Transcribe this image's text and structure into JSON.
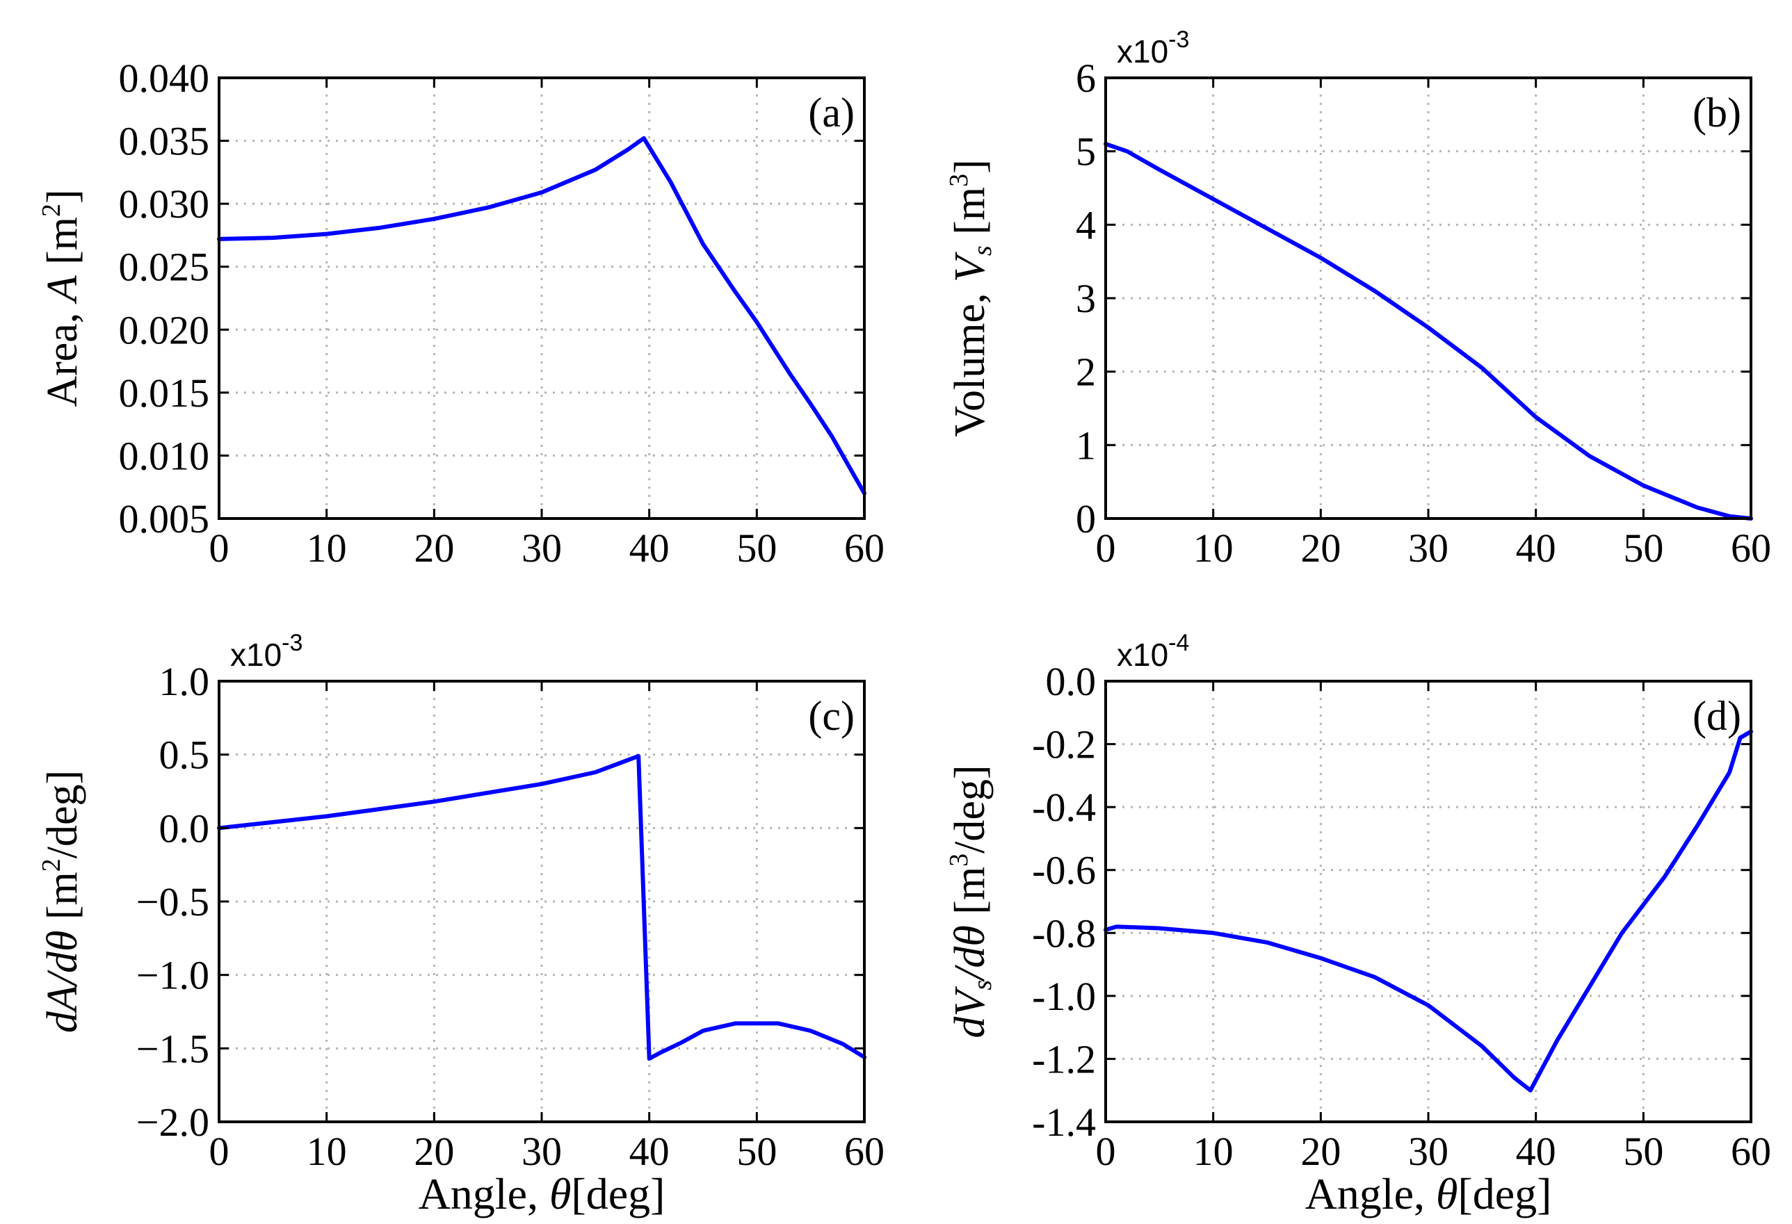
{
  "colors": {
    "line": "#0000ff",
    "grid": "#b5b5b5",
    "axis": "#000000"
  },
  "shared_xlabel": {
    "prefix": "Angle, ",
    "symbol": "θ",
    "suffix": "[deg]"
  },
  "chart_data": [
    {
      "type": "line",
      "panel_label": "(a)",
      "ylabel": {
        "prefix": "Area, ",
        "symbol": "A",
        "suffix": " [m",
        "sup": "2",
        "close": "]"
      },
      "xlabel": "",
      "xlim": [
        0,
        60
      ],
      "ylim": [
        0.005,
        0.04
      ],
      "xticks": [
        0,
        10,
        20,
        30,
        40,
        50,
        60
      ],
      "yticks": [
        0.005,
        0.01,
        0.015,
        0.02,
        0.025,
        0.03,
        0.035,
        0.04
      ],
      "ytick_labels": [
        "0.005",
        "0.010",
        "0.015",
        "0.020",
        "0.025",
        "0.030",
        "0.035",
        "0.040"
      ],
      "multiplier": null,
      "grid": true,
      "series": [
        {
          "x": [
            0,
            5,
            10,
            15,
            20,
            25,
            30,
            35,
            38,
            39.5,
            42,
            45,
            48,
            50,
            53,
            55,
            57,
            60
          ],
          "y": [
            0.0272,
            0.0273,
            0.0276,
            0.0281,
            0.0288,
            0.0297,
            0.0309,
            0.0327,
            0.0343,
            0.0352,
            0.0317,
            0.0268,
            0.023,
            0.0206,
            0.0166,
            0.0141,
            0.0115,
            0.007
          ]
        }
      ]
    },
    {
      "type": "line",
      "panel_label": "(b)",
      "ylabel": {
        "prefix": "Volume, ",
        "symbol": "V",
        "sub": "s",
        "suffix": " [m",
        "sup": "3",
        "close": "]"
      },
      "xlabel": "",
      "xlim": [
        0,
        60
      ],
      "ylim": [
        0,
        6
      ],
      "xticks": [
        0,
        10,
        20,
        30,
        40,
        50,
        60
      ],
      "yticks": [
        0,
        1,
        2,
        3,
        4,
        5,
        6
      ],
      "ytick_labels": [
        "0",
        "1",
        "2",
        "3",
        "4",
        "5",
        "6"
      ],
      "multiplier": {
        "base": "x10",
        "exp": "-3"
      },
      "grid": true,
      "series": [
        {
          "x": [
            0,
            2,
            5,
            10,
            15,
            20,
            25,
            30,
            35,
            40,
            45,
            50,
            55,
            58,
            60
          ],
          "y": [
            5.1,
            5.0,
            4.75,
            4.35,
            3.95,
            3.55,
            3.1,
            2.6,
            2.05,
            1.38,
            0.85,
            0.45,
            0.15,
            0.03,
            0.0
          ]
        }
      ]
    },
    {
      "type": "line",
      "panel_label": "(c)",
      "ylabel": {
        "prefix": "",
        "symbol": "dA/dθ",
        "suffix": " [m",
        "sup": "2",
        "close": "/deg]"
      },
      "xlabel": {
        "prefix": "Angle, ",
        "symbol": "θ",
        "suffix": "[deg]"
      },
      "xlim": [
        0,
        60
      ],
      "ylim": [
        -2.0,
        1.0
      ],
      "xticks": [
        0,
        10,
        20,
        30,
        40,
        50,
        60
      ],
      "yticks": [
        -2.0,
        -1.5,
        -1.0,
        -0.5,
        0.0,
        0.5,
        1.0
      ],
      "ytick_labels": [
        "−2.0",
        "−1.5",
        "−1.0",
        "−0.5",
        "0.0",
        "0.5",
        "1.0"
      ],
      "multiplier": {
        "base": "x10",
        "exp": "-3"
      },
      "grid": true,
      "series": [
        {
          "x": [
            0,
            5,
            10,
            15,
            20,
            25,
            30,
            35,
            39,
            40,
            41,
            43,
            45,
            48,
            52,
            55,
            58,
            60
          ],
          "y": [
            0.0,
            0.04,
            0.08,
            0.13,
            0.18,
            0.24,
            0.3,
            0.38,
            0.49,
            -1.57,
            -1.53,
            -1.46,
            -1.38,
            -1.33,
            -1.33,
            -1.38,
            -1.47,
            -1.56
          ]
        }
      ]
    },
    {
      "type": "line",
      "panel_label": "(d)",
      "ylabel": {
        "prefix": "",
        "symbol": "dV",
        "sub": "s",
        "suffix_italic": "/dθ",
        "suffix": " [m",
        "sup": "3",
        "close": "/deg]"
      },
      "xlabel": {
        "prefix": "Angle, ",
        "symbol": "θ",
        "suffix": "[deg]"
      },
      "xlim": [
        0,
        60
      ],
      "ylim": [
        -1.4,
        0.0
      ],
      "xticks": [
        0,
        10,
        20,
        30,
        40,
        50,
        60
      ],
      "yticks": [
        -1.4,
        -1.2,
        -1.0,
        -0.8,
        -0.6,
        -0.4,
        -0.2,
        0.0
      ],
      "ytick_labels": [
        "-1.4",
        "-1.2",
        "-1.0",
        "-0.8",
        "-0.6",
        "-0.4",
        "-0.2",
        "0.0"
      ],
      "multiplier": {
        "base": "x10",
        "exp": "-4"
      },
      "grid": true,
      "series": [
        {
          "x": [
            0,
            1,
            5,
            10,
            15,
            20,
            25,
            30,
            35,
            38,
            39.5,
            42,
            45,
            48,
            52,
            55,
            58,
            59,
            60
          ],
          "y": [
            -0.79,
            -0.78,
            -0.785,
            -0.8,
            -0.83,
            -0.88,
            -0.94,
            -1.03,
            -1.16,
            -1.26,
            -1.3,
            -1.14,
            -0.97,
            -0.8,
            -0.62,
            -0.46,
            -0.29,
            -0.18,
            -0.16
          ]
        }
      ]
    }
  ]
}
